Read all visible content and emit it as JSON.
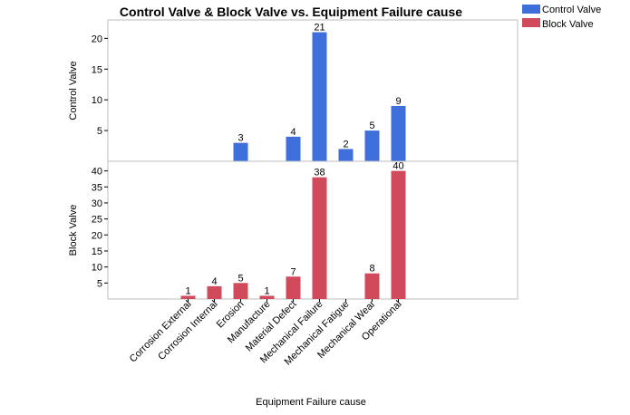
{
  "chart_data": {
    "type": "bar",
    "title": "Control Valve & Block Valve vs. Equipment Failure cause",
    "xlabel": "Equipment Failure cause",
    "categories": [
      "Corrosion External",
      "Corrosion Internal",
      "Erosion",
      "Manufacture",
      "Material Defect",
      "Mechanical Failure",
      "Mechanical Fatigue",
      "Mechanical Wear",
      "Operational"
    ],
    "legend_placement": "top-right",
    "panels": [
      {
        "series": "Control Valve",
        "ylabel": "Control Valve",
        "color": "#3f6fdb",
        "ylim": [
          0,
          23
        ],
        "yticks": [
          5,
          10,
          15,
          20
        ],
        "values": [
          null,
          null,
          3,
          null,
          4,
          21,
          2,
          5,
          9
        ],
        "labels": [
          "",
          "",
          "3",
          "",
          "4",
          "21",
          "2",
          "5",
          "9"
        ]
      },
      {
        "series": "Block Valve",
        "ylabel": "Block Valve",
        "color": "#d14a5b",
        "ylim": [
          0,
          43
        ],
        "yticks": [
          5,
          10,
          15,
          20,
          25,
          30,
          35,
          40
        ],
        "values": [
          1,
          4,
          5,
          1,
          7,
          38,
          null,
          8,
          40
        ],
        "labels": [
          "1",
          "4",
          "5",
          "1",
          "7",
          "38",
          "",
          "8",
          "40"
        ]
      }
    ],
    "legend": [
      {
        "name": "Control Valve",
        "color": "#3f6fdb"
      },
      {
        "name": "Block Valve",
        "color": "#d14a5b"
      }
    ]
  }
}
